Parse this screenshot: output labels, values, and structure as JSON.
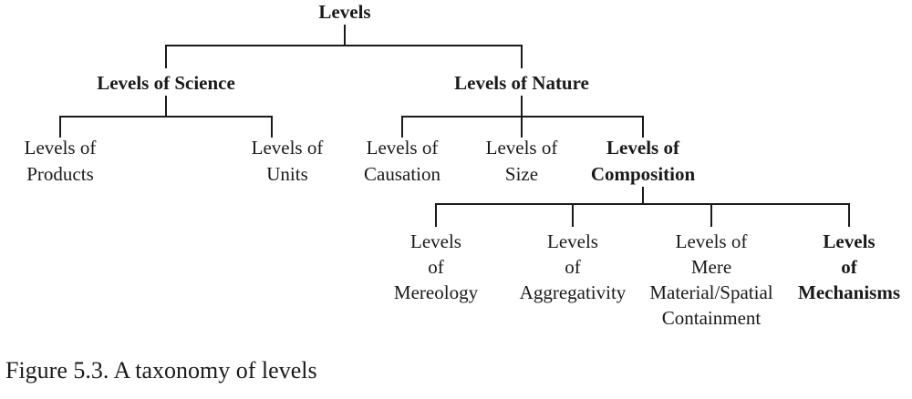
{
  "diagram": {
    "root": {
      "lines": [
        "Levels"
      ]
    },
    "science": {
      "label": {
        "lines": [
          "Levels of Science"
        ]
      },
      "products": {
        "lines": [
          "Levels of",
          "Products"
        ]
      },
      "units": {
        "lines": [
          "Levels of",
          "Units"
        ]
      }
    },
    "nature": {
      "label": {
        "lines": [
          "Levels of Nature"
        ]
      },
      "causation": {
        "lines": [
          "Levels of",
          "Causation"
        ]
      },
      "size": {
        "lines": [
          "Levels of",
          "Size"
        ]
      },
      "composition": {
        "lines": [
          "Levels of",
          "Composition"
        ]
      }
    },
    "composition_children": {
      "mereology": {
        "lines": [
          "Levels",
          "of",
          "Mereology"
        ]
      },
      "aggregativity": {
        "lines": [
          "Levels",
          "of",
          "Aggregativity"
        ]
      },
      "containment": {
        "lines": [
          "Levels of",
          "Mere",
          "Material/Spatial",
          "Containment"
        ]
      },
      "mechanisms": {
        "lines": [
          "Levels",
          "of",
          "Mechanisms"
        ]
      }
    }
  },
  "caption": "Figure 5.3.  A taxonomy of levels"
}
